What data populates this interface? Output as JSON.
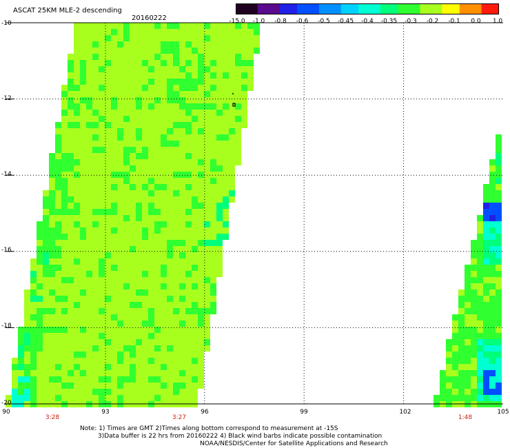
{
  "header": {
    "title": "ASCAT 25KM MLE-2 descending",
    "date": "20160222"
  },
  "colorbar": {
    "labels": [
      "-15.0",
      "-1.0",
      "-0.8",
      "-0.6",
      "-0.5",
      "-0.45",
      "-0.4",
      "-0.35",
      "-0.3",
      "-0.2",
      "-0.1",
      "0.0",
      "1.0"
    ],
    "colors": [
      "#200020",
      "#5a0a8c",
      "#2020e6",
      "#0050ff",
      "#0090ff",
      "#00d2ff",
      "#00ffd2",
      "#00ff7a",
      "#30ff30",
      "#a8ff1e",
      "#ffff00",
      "#ff9000",
      "#ff1a0a"
    ]
  },
  "axes": {
    "x_ticks": [
      "90",
      "93",
      "96",
      "99",
      "102",
      "105"
    ],
    "y_ticks": [
      "-10",
      "-12",
      "-14",
      "-16",
      "-18",
      "-20"
    ],
    "lon_range": [
      90,
      105
    ],
    "lat_range": [
      -20,
      -10
    ]
  },
  "pass_times": [
    "3:28",
    "3:27",
    "1:48"
  ],
  "notes": {
    "line1": "Note: 1) Times are GMT 2)Times along bottom correspond to measurement at -15S",
    "line2": "3)Data buffer is 22 hrs from 20160222 4) Black wind barbs indicate possible contamination",
    "line3": "NOAA/NESDIS/Center for Satellite Applications and Research"
  },
  "colors": {
    "swath_base": "#a8ff1e",
    "swath_mid": "#30ff30",
    "swath_low": "#00ff7a",
    "swath_cyan": "#00ffd2",
    "swath_blue": "#0050ff",
    "swath_dark": "#2020e6",
    "time_label": "#c8200f",
    "grid": "#000000"
  }
}
